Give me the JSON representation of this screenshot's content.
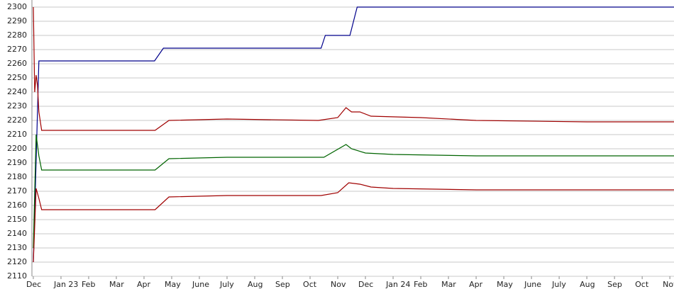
{
  "chart_data": {
    "type": "line",
    "xlim": [
      -0.05,
      23.15
    ],
    "xticks": [
      {
        "value": 0,
        "label": "Dec"
      },
      {
        "value": 1,
        "label": "Jan 23"
      },
      {
        "value": 2,
        "label": "Feb"
      },
      {
        "value": 3,
        "label": "Mar"
      },
      {
        "value": 4,
        "label": "Apr"
      },
      {
        "value": 5,
        "label": "May"
      },
      {
        "value": 6,
        "label": "June"
      },
      {
        "value": 7,
        "label": "July"
      },
      {
        "value": 8,
        "label": "Aug"
      },
      {
        "value": 9,
        "label": "Sep"
      },
      {
        "value": 10,
        "label": "Oct"
      },
      {
        "value": 11,
        "label": "Nov"
      },
      {
        "value": 12,
        "label": "Dec"
      },
      {
        "value": 13,
        "label": "Jan 24"
      },
      {
        "value": 14,
        "label": "Feb"
      },
      {
        "value": 15,
        "label": "Mar"
      },
      {
        "value": 16,
        "label": "Apr"
      },
      {
        "value": 17,
        "label": "May"
      },
      {
        "value": 18,
        "label": "June"
      },
      {
        "value": 19,
        "label": "July"
      },
      {
        "value": 20,
        "label": "Aug"
      },
      {
        "value": 21,
        "label": "Sep"
      },
      {
        "value": 22,
        "label": "Oct"
      },
      {
        "value": 23,
        "label": "Nov"
      }
    ],
    "ylim": [
      2110,
      2300
    ],
    "yticks": [
      2110,
      2120,
      2130,
      2140,
      2150,
      2160,
      2170,
      2180,
      2190,
      2200,
      2210,
      2220,
      2230,
      2240,
      2250,
      2260,
      2270,
      2280,
      2290,
      2300
    ],
    "grid": true,
    "series": [
      {
        "color": "#00008b",
        "x": [
          0,
          0.2,
          4.38,
          4.7,
          10.4,
          10.55,
          11.44,
          11.7,
          23.15
        ],
        "values": [
          2120,
          2262,
          2262,
          2271,
          2271,
          2280,
          2280,
          2300,
          2300
        ]
      },
      {
        "color": "#a00000",
        "x": [
          0,
          0.05,
          0.1,
          0.15,
          0.2,
          0.3,
          2,
          4.4,
          4.9,
          7,
          10.3,
          11,
          11.3,
          11.5,
          11.8,
          12.2,
          14,
          16,
          20,
          23.15
        ],
        "values": [
          2300,
          2240,
          2252,
          2245,
          2226,
          2213,
          2213,
          2213,
          2220,
          2221,
          2220,
          2222,
          2229,
          2226,
          2226,
          2223,
          2222,
          2220,
          2219,
          2219
        ]
      },
      {
        "color": "#006400",
        "x": [
          0,
          0.1,
          0.2,
          0.3,
          2,
          4.4,
          4.9,
          7,
          10.5,
          11.3,
          11.5,
          12,
          13,
          16,
          23.15
        ],
        "values": [
          2130,
          2210,
          2195,
          2185,
          2185,
          2185,
          2193,
          2194,
          2194,
          2203,
          2200,
          2197,
          2196,
          2195,
          2195
        ]
      },
      {
        "color": "#a00000",
        "x": [
          0,
          0.1,
          0.2,
          0.3,
          2,
          4.4,
          4.9,
          7,
          10.4,
          11,
          11.4,
          11.8,
          12.2,
          13,
          16,
          23.15
        ],
        "values": [
          2120,
          2172,
          2165,
          2157,
          2157,
          2157,
          2166,
          2167,
          2167,
          2169,
          2176,
          2175,
          2173,
          2172,
          2171,
          2171
        ]
      }
    ]
  }
}
